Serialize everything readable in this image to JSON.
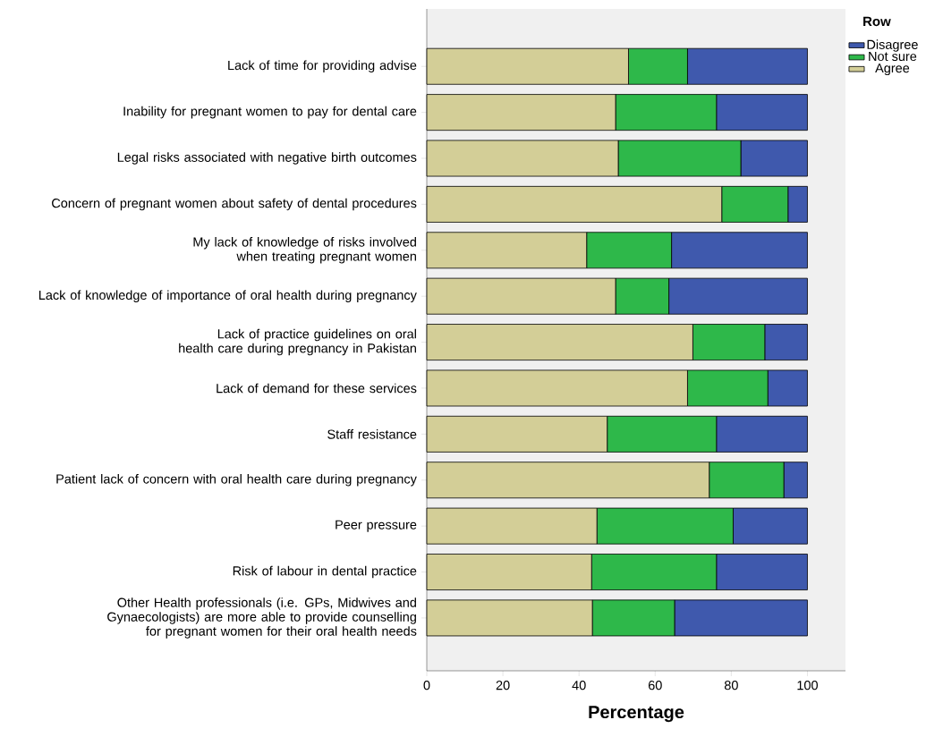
{
  "chart_data": {
    "type": "bar",
    "orientation": "horizontal",
    "stacked": true,
    "xlabel": "Percentage",
    "legend_title": "Row",
    "legend": "top right",
    "categories": [
      "Lack of time for providing advise",
      "Inability for pregnant women to pay for dental care",
      "Legal risks associated with negative birth outcomes",
      "Concern of pregnant women about safety of dental procedures",
      "My lack of knowledge of risks involved when treating pregnant women",
      "Lack of knowledge of importance of oral health during pregnancy",
      "Lack of practice guidelines on oral health care during pregnancy in Pakistan",
      "Lack of demand for these services",
      "Staff resistance",
      "Patient lack of concern with oral health care during pregnancy",
      "Peer pressure",
      "Risk of labour in dental practice",
      "Other Health professionals (i.e. GPs, Midwives and Gynaecologists) are more able to provide counselling for pregnant women for their oral health needs"
    ],
    "series": [
      {
        "name": "Agree",
        "color": "#d3ce97",
        "values": [
          53.0,
          49.6,
          50.3,
          77.5,
          42.0,
          49.6,
          69.9,
          68.5,
          47.4,
          74.2,
          44.7,
          43.3,
          43.5
        ]
      },
      {
        "name": "Not sure",
        "color": "#2eb84a",
        "values": [
          15.5,
          26.5,
          32.2,
          17.4,
          22.3,
          14.0,
          18.9,
          21.1,
          28.7,
          19.6,
          35.8,
          32.8,
          21.6
        ]
      },
      {
        "name": "Disagree",
        "color": "#3f59ad",
        "values": [
          31.5,
          23.9,
          17.5,
          5.1,
          35.7,
          36.4,
          11.2,
          10.4,
          23.9,
          6.2,
          19.5,
          23.9,
          34.9
        ]
      }
    ],
    "xlim": [
      0,
      110
    ],
    "xticks": [
      0,
      20,
      40,
      60,
      80,
      100
    ],
    "grid": false
  }
}
